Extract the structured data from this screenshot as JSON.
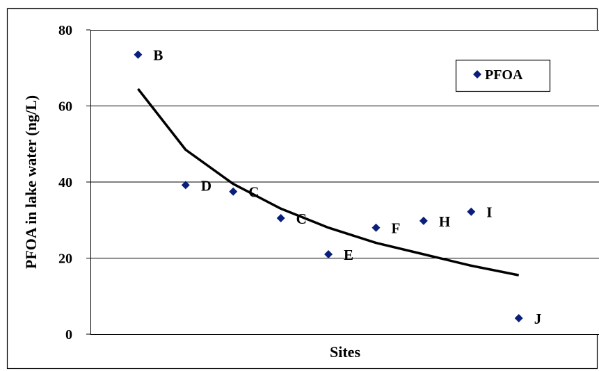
{
  "chart_data": {
    "type": "scatter",
    "xlabel": "Sites",
    "ylabel": "PFOA in lake water (ng/L)",
    "ylim": [
      0,
      80
    ],
    "yticks": [
      0,
      20,
      40,
      60,
      80
    ],
    "grid": "horizontal",
    "legend_position": "top-right",
    "series": [
      {
        "name": "PFOA",
        "marker": "diamond",
        "color": "#0a1f7a",
        "points": [
          {
            "x": 1,
            "y": 73.5,
            "label": "B"
          },
          {
            "x": 2,
            "y": 39.2,
            "label": "D"
          },
          {
            "x": 3,
            "y": 37.5,
            "label": "C"
          },
          {
            "x": 4,
            "y": 30.5,
            "label": "C"
          },
          {
            "x": 5,
            "y": 21.0,
            "label": "E"
          },
          {
            "x": 6,
            "y": 28.0,
            "label": "F"
          },
          {
            "x": 7,
            "y": 29.8,
            "label": "H"
          },
          {
            "x": 8,
            "y": 32.2,
            "label": "I"
          },
          {
            "x": 9,
            "y": 4.2,
            "label": "J"
          }
        ]
      }
    ],
    "trendline": {
      "type": "logarithmic",
      "color": "#000000",
      "points": [
        {
          "x": 1,
          "y": 64.5
        },
        {
          "x": 2,
          "y": 48.5
        },
        {
          "x": 3,
          "y": 39.5
        },
        {
          "x": 4,
          "y": 33.0
        },
        {
          "x": 5,
          "y": 28.0
        },
        {
          "x": 6,
          "y": 24.0
        },
        {
          "x": 7,
          "y": 21.0
        },
        {
          "x": 8,
          "y": 18.0
        },
        {
          "x": 9,
          "y": 15.5
        }
      ]
    }
  }
}
